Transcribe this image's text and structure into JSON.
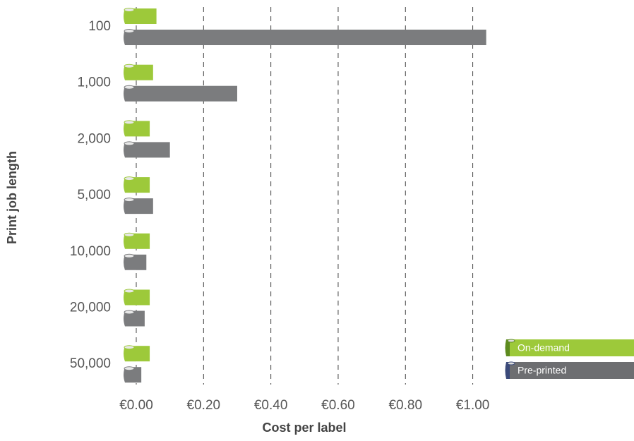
{
  "chart_data": {
    "type": "bar",
    "orientation": "horizontal",
    "xlabel": "Cost per label",
    "ylabel": "Print job length",
    "categories": [
      "100",
      "1,000",
      "2,000",
      "5,000",
      "10,000",
      "20,000",
      "50,000"
    ],
    "series": [
      {
        "name": "On-demand",
        "color": "#9dc93a",
        "values": [
          0.06,
          0.05,
          0.04,
          0.04,
          0.04,
          0.04,
          0.04
        ]
      },
      {
        "name": "Pre-printed",
        "color": "#7b7c7e",
        "values": [
          1.04,
          0.3,
          0.1,
          0.05,
          0.03,
          0.025,
          0.015
        ]
      }
    ],
    "xlim": [
      0,
      1.0785
    ],
    "xticks": [
      {
        "value": 0,
        "label": "€0.00"
      },
      {
        "value": 0.2,
        "label": "€0.20"
      },
      {
        "value": 0.4,
        "label": "€0.40"
      },
      {
        "value": 0.6,
        "label": "€0.60"
      },
      {
        "value": 0.8,
        "label": "€0.80"
      },
      {
        "value": 1.0,
        "label": "€1.00"
      }
    ],
    "grid": true,
    "legend": "lower right"
  }
}
